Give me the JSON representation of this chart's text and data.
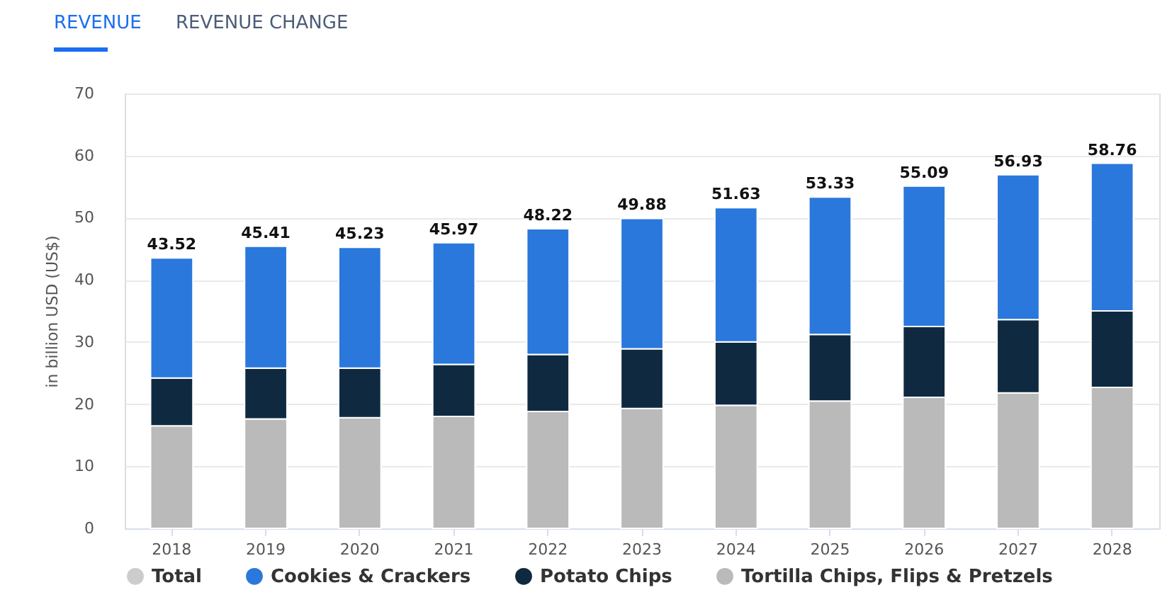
{
  "chart_data": {
    "type": "bar",
    "stacked": true,
    "annotations": [
      "REVENUE",
      "REVENUE CHANGE"
    ],
    "ylabel": "in billion USD (US$)",
    "categories": [
      "2018",
      "2019",
      "2020",
      "2021",
      "2022",
      "2023",
      "2024",
      "2025",
      "2026",
      "2027",
      "2028"
    ],
    "series": [
      {
        "name": "Tortilla Chips, Flips & Pretzels",
        "color": "#bababa",
        "values": [
          16.5,
          17.6,
          17.8,
          18.0,
          18.8,
          19.3,
          19.8,
          20.5,
          21.1,
          21.8,
          22.7
        ]
      },
      {
        "name": "Potato Chips",
        "color": "#0f2a40",
        "values": [
          7.7,
          8.2,
          8.0,
          8.4,
          9.2,
          9.6,
          10.2,
          10.7,
          11.4,
          11.8,
          12.3
        ]
      },
      {
        "name": "Cookies & Crackers",
        "color": "#2a78dc",
        "values": [
          19.32,
          19.61,
          19.43,
          19.57,
          20.22,
          20.98,
          21.63,
          22.13,
          22.59,
          23.33,
          23.76
        ]
      },
      {
        "name": "Total",
        "color": "#cccccc",
        "values": [
          null,
          null,
          null,
          null,
          null,
          null,
          null,
          null,
          null,
          null,
          null
        ]
      }
    ],
    "totals": [
      "43.52",
      "45.41",
      "45.23",
      "45.97",
      "48.22",
      "49.88",
      "51.63",
      "53.33",
      "55.09",
      "56.93",
      "58.76"
    ],
    "ylim": [
      0,
      70
    ],
    "yticks": [
      0,
      10,
      20,
      30,
      40,
      50,
      60,
      70
    ],
    "grid": "y",
    "legend": "bottom"
  }
}
